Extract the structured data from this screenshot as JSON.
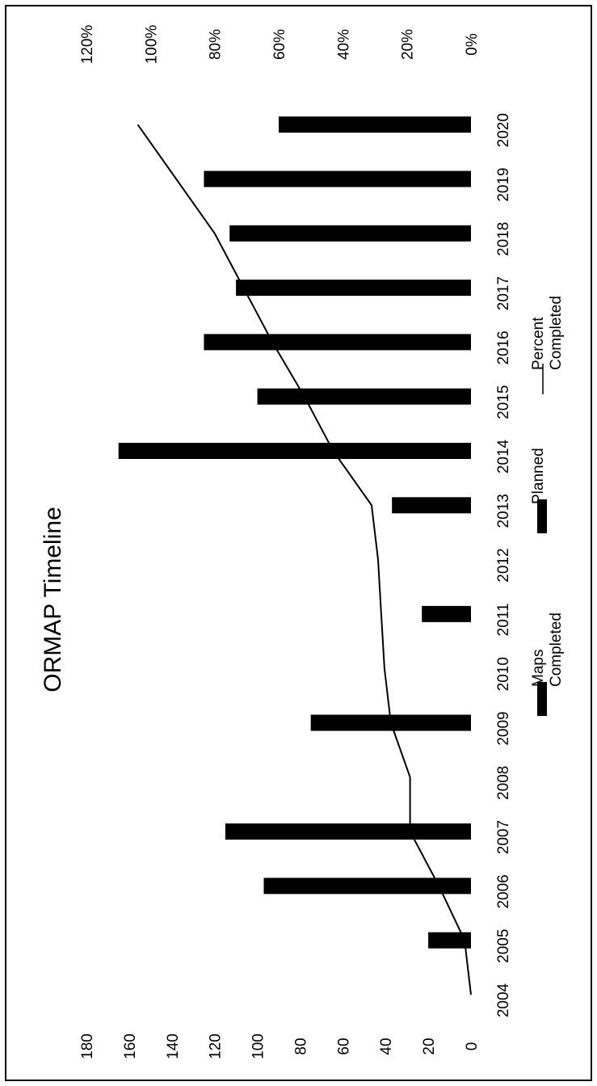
{
  "chart_data": {
    "type": "bar",
    "orientation": "rotated-90-clockwise",
    "title": "ORMAP Timeline",
    "categories": [
      "2004",
      "2005",
      "2006",
      "2007",
      "2008",
      "2009",
      "2010",
      "2011",
      "2012",
      "2013",
      "2014",
      "2015",
      "2016",
      "2017",
      "2018",
      "2019",
      "2020"
    ],
    "series": [
      {
        "name": "Maps Completed",
        "kind": "bar",
        "axis": "primary",
        "color": "#000000",
        "values": [
          0,
          20,
          97,
          115,
          0,
          75,
          0,
          0,
          0,
          0,
          0,
          0,
          0,
          0,
          0,
          0,
          0
        ]
      },
      {
        "name": "Planned",
        "kind": "bar",
        "axis": "primary",
        "color": "#000000",
        "values": [
          0,
          0,
          0,
          0,
          0,
          0,
          0,
          23,
          0,
          37,
          165,
          100,
          125,
          110,
          113,
          125,
          90
        ]
      },
      {
        "name": "Percent Completed",
        "kind": "line",
        "axis": "secondary",
        "color": "#000000",
        "values": [
          0,
          2,
          10,
          19,
          19,
          25,
          27,
          28,
          29,
          31,
          43,
          52,
          62,
          71,
          80,
          92,
          104
        ]
      }
    ],
    "primary_axis": {
      "ticks": [
        "0",
        "20",
        "40",
        "60",
        "80",
        "100",
        "120",
        "140",
        "160",
        "180"
      ],
      "range": [
        0,
        180
      ]
    },
    "secondary_axis": {
      "ticks": [
        "0%",
        "20%",
        "40%",
        "60%",
        "80%",
        "100%",
        "120%"
      ],
      "range": [
        0,
        120
      ]
    },
    "legend": {
      "placement": "bottom",
      "entries": [
        {
          "label_lines": [
            "Maps",
            "Completed"
          ],
          "marker": "bar"
        },
        {
          "label_lines": [
            "Planned"
          ],
          "marker": "bar"
        },
        {
          "label_lines": [
            "Percent",
            "Completed"
          ],
          "marker": "line"
        }
      ]
    },
    "grid": false
  }
}
